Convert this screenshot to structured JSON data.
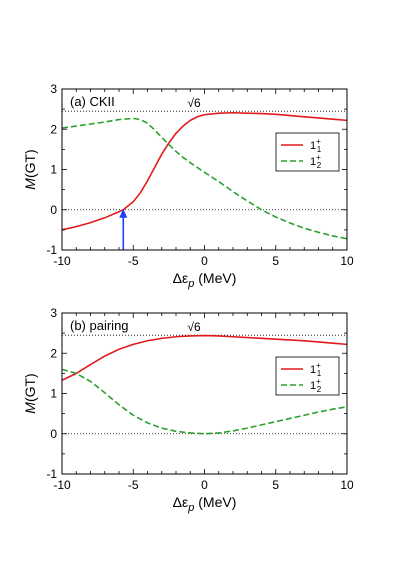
{
  "chart_data": [
    {
      "type": "line",
      "panel_label": "(a) CKII",
      "xlabel_main": "Δε",
      "xlabel_sub": "p",
      "xlabel_unit": " (MeV)",
      "ylabel_italic": "M",
      "ylabel_rest": "(GT)",
      "xlim": [
        -10,
        10
      ],
      "ylim": [
        -1,
        3
      ],
      "xticks": [
        -10,
        -5,
        0,
        5,
        10
      ],
      "yticks": [
        -1,
        0,
        1,
        2,
        3
      ],
      "reference_lines": [
        {
          "y": 2.449,
          "label": "√6",
          "label_x": -1.2
        },
        {
          "y": 0,
          "label": ""
        }
      ],
      "arrow": {
        "x": -5.7,
        "y_from": -1,
        "y_to": 0,
        "color": "#1f3fff"
      },
      "legend_position": "right",
      "series": [
        {
          "name": "1+1",
          "label_base": "1",
          "label_sup": "+",
          "label_sub": "1",
          "color": "#e31a1c",
          "dash": "solid",
          "x": [
            -10,
            -9,
            -8,
            -7,
            -6,
            -5.7,
            -5,
            -4.5,
            -4,
            -3.5,
            -3,
            -2.5,
            -2,
            -1.5,
            -1,
            -0.5,
            0,
            1,
            2,
            3,
            4,
            5,
            6,
            7,
            8,
            9,
            10
          ],
          "y": [
            -0.5,
            -0.42,
            -0.32,
            -0.2,
            -0.05,
            0.0,
            0.2,
            0.42,
            0.72,
            1.05,
            1.38,
            1.66,
            1.9,
            2.08,
            2.22,
            2.31,
            2.36,
            2.4,
            2.41,
            2.4,
            2.39,
            2.37,
            2.34,
            2.31,
            2.28,
            2.25,
            2.22
          ]
        },
        {
          "name": "1+2",
          "label_base": "1",
          "label_sup": "+",
          "label_sub": "2",
          "color": "#2ca02c",
          "dash": "dashed",
          "x": [
            -10,
            -9,
            -8,
            -7,
            -6,
            -5,
            -4.5,
            -4,
            -3.5,
            -3,
            -2.5,
            -2,
            -1.5,
            -1,
            -0.5,
            0,
            1,
            2,
            3,
            4,
            5,
            6,
            7,
            8,
            9,
            10
          ],
          "y": [
            2.03,
            2.08,
            2.13,
            2.18,
            2.24,
            2.27,
            2.24,
            2.15,
            1.98,
            1.8,
            1.62,
            1.45,
            1.3,
            1.17,
            1.05,
            0.93,
            0.7,
            0.45,
            0.22,
            0.0,
            -0.18,
            -0.33,
            -0.46,
            -0.56,
            -0.65,
            -0.72
          ]
        }
      ]
    },
    {
      "type": "line",
      "panel_label": "(b) pairing",
      "xlabel_main": "Δε",
      "xlabel_sub": "p",
      "xlabel_unit": " (MeV)",
      "ylabel_italic": "M",
      "ylabel_rest": "(GT)",
      "xlim": [
        -10,
        10
      ],
      "ylim": [
        -1,
        3
      ],
      "xticks": [
        -10,
        -5,
        0,
        5,
        10
      ],
      "yticks": [
        -1,
        0,
        1,
        2,
        3
      ],
      "reference_lines": [
        {
          "y": 2.449,
          "label": "√6",
          "label_x": -1.2
        },
        {
          "y": 0,
          "label": ""
        }
      ],
      "legend_position": "right",
      "series": [
        {
          "name": "1+1",
          "label_base": "1",
          "label_sup": "+",
          "label_sub": "1",
          "color": "#e31a1c",
          "dash": "solid",
          "x": [
            -10,
            -9,
            -8,
            -7,
            -6,
            -5,
            -4,
            -3,
            -2,
            -1,
            0,
            1,
            2,
            3,
            4,
            5,
            6,
            7,
            8,
            9,
            10
          ],
          "y": [
            1.33,
            1.5,
            1.72,
            1.93,
            2.1,
            2.22,
            2.31,
            2.37,
            2.41,
            2.43,
            2.44,
            2.43,
            2.41,
            2.39,
            2.37,
            2.35,
            2.33,
            2.31,
            2.28,
            2.25,
            2.22
          ]
        },
        {
          "name": "1+2",
          "label_base": "1",
          "label_sup": "+",
          "label_sub": "2",
          "color": "#2ca02c",
          "dash": "dashed",
          "x": [
            -10,
            -9,
            -8,
            -7,
            -6,
            -5,
            -4,
            -3,
            -2,
            -1,
            0,
            1,
            2,
            3,
            4,
            5,
            6,
            7,
            8,
            9,
            10
          ],
          "y": [
            1.6,
            1.5,
            1.3,
            1.02,
            0.72,
            0.46,
            0.27,
            0.14,
            0.06,
            0.02,
            0.0,
            0.02,
            0.07,
            0.14,
            0.22,
            0.3,
            0.38,
            0.46,
            0.54,
            0.61,
            0.67
          ]
        }
      ]
    }
  ]
}
